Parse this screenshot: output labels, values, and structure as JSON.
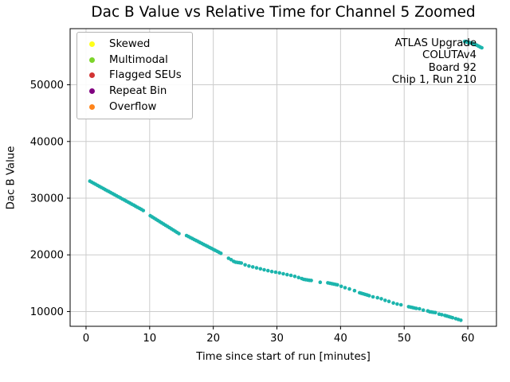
{
  "chart_data": {
    "type": "scatter",
    "title": "Dac B Value vs Relative Time for Channel 5 Zoomed",
    "xlabel": "Time since start of run [minutes]",
    "ylabel": "Dac B Value",
    "xlim": [
      -2.5,
      64.5
    ],
    "ylim": [
      7400,
      59900
    ],
    "xticks": [
      0,
      10,
      20,
      30,
      40,
      50,
      60
    ],
    "yticks": [
      10000,
      20000,
      30000,
      40000,
      50000
    ],
    "grid": true,
    "grid_color": "#cccccc",
    "axis_color": "#000000",
    "legend": {
      "position": "upper-left",
      "entries": [
        {
          "label": "Skewed",
          "color": "#ffff19",
          "icon": "dot-marker-icon"
        },
        {
          "label": "Multimodal",
          "color": "#7cd42a",
          "icon": "dot-marker-icon"
        },
        {
          "label": "Flagged SEUs",
          "color": "#d23333",
          "icon": "dot-marker-icon"
        },
        {
          "label": "Repeat Bin",
          "color": "#800080",
          "icon": "dot-marker-icon"
        },
        {
          "label": "Overflow",
          "color": "#ff841a",
          "icon": "dot-marker-icon"
        }
      ]
    },
    "annotation": {
      "align": "right",
      "lines": [
        "ATLAS Upgrade",
        "COLUTAv4",
        "Board 92",
        "Chip 1, Run 210"
      ]
    },
    "series": [
      {
        "name": "channel-5-dac-b",
        "color": "#1cb5ad",
        "marker": "circle",
        "points": [
          [
            0.6,
            33000
          ],
          [
            0.9,
            32820
          ],
          [
            1.2,
            32630
          ],
          [
            1.5,
            32450
          ],
          [
            1.8,
            32260
          ],
          [
            2.1,
            32080
          ],
          [
            2.4,
            31890
          ],
          [
            2.7,
            31710
          ],
          [
            3.0,
            31520
          ],
          [
            3.3,
            31340
          ],
          [
            3.6,
            31160
          ],
          [
            3.9,
            30970
          ],
          [
            4.2,
            30790
          ],
          [
            4.5,
            30600
          ],
          [
            4.8,
            30420
          ],
          [
            5.1,
            30230
          ],
          [
            5.4,
            30050
          ],
          [
            5.7,
            29860
          ],
          [
            6.0,
            29680
          ],
          [
            6.3,
            29500
          ],
          [
            6.6,
            29310
          ],
          [
            6.9,
            29130
          ],
          [
            7.2,
            28940
          ],
          [
            7.5,
            28760
          ],
          [
            7.8,
            28570
          ],
          [
            8.1,
            28390
          ],
          [
            8.4,
            28200
          ],
          [
            8.7,
            28020
          ],
          [
            9.0,
            27830
          ],
          [
            10.1,
            26900
          ],
          [
            10.4,
            26690
          ],
          [
            10.7,
            26480
          ],
          [
            11.0,
            26270
          ],
          [
            11.3,
            26060
          ],
          [
            11.6,
            25850
          ],
          [
            11.9,
            25640
          ],
          [
            12.2,
            25430
          ],
          [
            12.5,
            25220
          ],
          [
            12.8,
            25010
          ],
          [
            13.1,
            24800
          ],
          [
            13.4,
            24590
          ],
          [
            13.7,
            24380
          ],
          [
            14.0,
            24170
          ],
          [
            14.3,
            23960
          ],
          [
            14.6,
            23750
          ],
          [
            15.8,
            23400
          ],
          [
            16.1,
            23230
          ],
          [
            16.4,
            23050
          ],
          [
            16.7,
            22880
          ],
          [
            17.0,
            22700
          ],
          [
            17.3,
            22530
          ],
          [
            17.6,
            22360
          ],
          [
            17.9,
            22180
          ],
          [
            18.2,
            22010
          ],
          [
            18.5,
            21830
          ],
          [
            18.8,
            21660
          ],
          [
            19.1,
            21490
          ],
          [
            19.4,
            21310
          ],
          [
            19.7,
            21140
          ],
          [
            20.0,
            20960
          ],
          [
            20.3,
            20790
          ],
          [
            20.6,
            20620
          ],
          [
            20.9,
            20440
          ],
          [
            21.2,
            20270
          ],
          [
            22.4,
            19400
          ],
          [
            22.8,
            19150
          ],
          [
            23.2,
            18850
          ],
          [
            23.5,
            18720
          ],
          [
            23.8,
            18660
          ],
          [
            24.1,
            18610
          ],
          [
            24.4,
            18560
          ],
          [
            25.0,
            18230
          ],
          [
            25.6,
            18030
          ],
          [
            26.2,
            17870
          ],
          [
            26.8,
            17710
          ],
          [
            27.4,
            17530
          ],
          [
            28.0,
            17360
          ],
          [
            28.6,
            17210
          ],
          [
            29.2,
            17060
          ],
          [
            29.8,
            16950
          ],
          [
            30.4,
            16820
          ],
          [
            31.0,
            16660
          ],
          [
            31.6,
            16510
          ],
          [
            32.2,
            16380
          ],
          [
            32.8,
            16200
          ],
          [
            33.4,
            16010
          ],
          [
            33.9,
            15820
          ],
          [
            34.2,
            15680
          ],
          [
            34.5,
            15620
          ],
          [
            34.8,
            15570
          ],
          [
            35.1,
            15520
          ],
          [
            35.4,
            15490
          ],
          [
            36.8,
            15160
          ],
          [
            38.0,
            15060
          ],
          [
            38.3,
            15000
          ],
          [
            38.6,
            14930
          ],
          [
            38.9,
            14860
          ],
          [
            39.2,
            14790
          ],
          [
            39.5,
            14710
          ],
          [
            40.1,
            14450
          ],
          [
            40.7,
            14210
          ],
          [
            41.4,
            13990
          ],
          [
            42.2,
            13690
          ],
          [
            43.0,
            13310
          ],
          [
            43.3,
            13210
          ],
          [
            43.6,
            13110
          ],
          [
            43.9,
            13010
          ],
          [
            44.2,
            12910
          ],
          [
            44.5,
            12810
          ],
          [
            45.1,
            12590
          ],
          [
            45.8,
            12440
          ],
          [
            46.4,
            12250
          ],
          [
            47.0,
            11970
          ],
          [
            47.6,
            11790
          ],
          [
            48.3,
            11510
          ],
          [
            48.9,
            11330
          ],
          [
            49.5,
            11190
          ],
          [
            50.7,
            10850
          ],
          [
            51.0,
            10780
          ],
          [
            51.3,
            10710
          ],
          [
            51.6,
            10630
          ],
          [
            51.9,
            10560
          ],
          [
            52.4,
            10490
          ],
          [
            53.0,
            10250
          ],
          [
            53.7,
            10110
          ],
          [
            54.0,
            9960
          ],
          [
            54.3,
            9910
          ],
          [
            54.6,
            9860
          ],
          [
            54.9,
            9820
          ],
          [
            55.5,
            9550
          ],
          [
            55.9,
            9450
          ],
          [
            56.4,
            9310
          ],
          [
            56.7,
            9210
          ],
          [
            57.0,
            9110
          ],
          [
            57.3,
            9010
          ],
          [
            57.6,
            8910
          ],
          [
            58.1,
            8750
          ],
          [
            58.5,
            8610
          ],
          [
            58.9,
            8460
          ],
          [
            59.5,
            57660
          ],
          [
            59.6,
            57610
          ],
          [
            59.7,
            57640
          ],
          [
            59.8,
            57560
          ],
          [
            59.9,
            57590
          ],
          [
            60.0,
            57520
          ],
          [
            60.1,
            57480
          ],
          [
            60.2,
            57450
          ],
          [
            60.35,
            57400
          ],
          [
            60.5,
            57360
          ],
          [
            60.65,
            57320
          ],
          [
            60.8,
            57270
          ],
          [
            61.0,
            57190
          ],
          [
            61.2,
            57090
          ],
          [
            61.45,
            56960
          ],
          [
            61.7,
            56810
          ],
          [
            61.95,
            56660
          ],
          [
            62.2,
            56530
          ]
        ]
      }
    ]
  }
}
